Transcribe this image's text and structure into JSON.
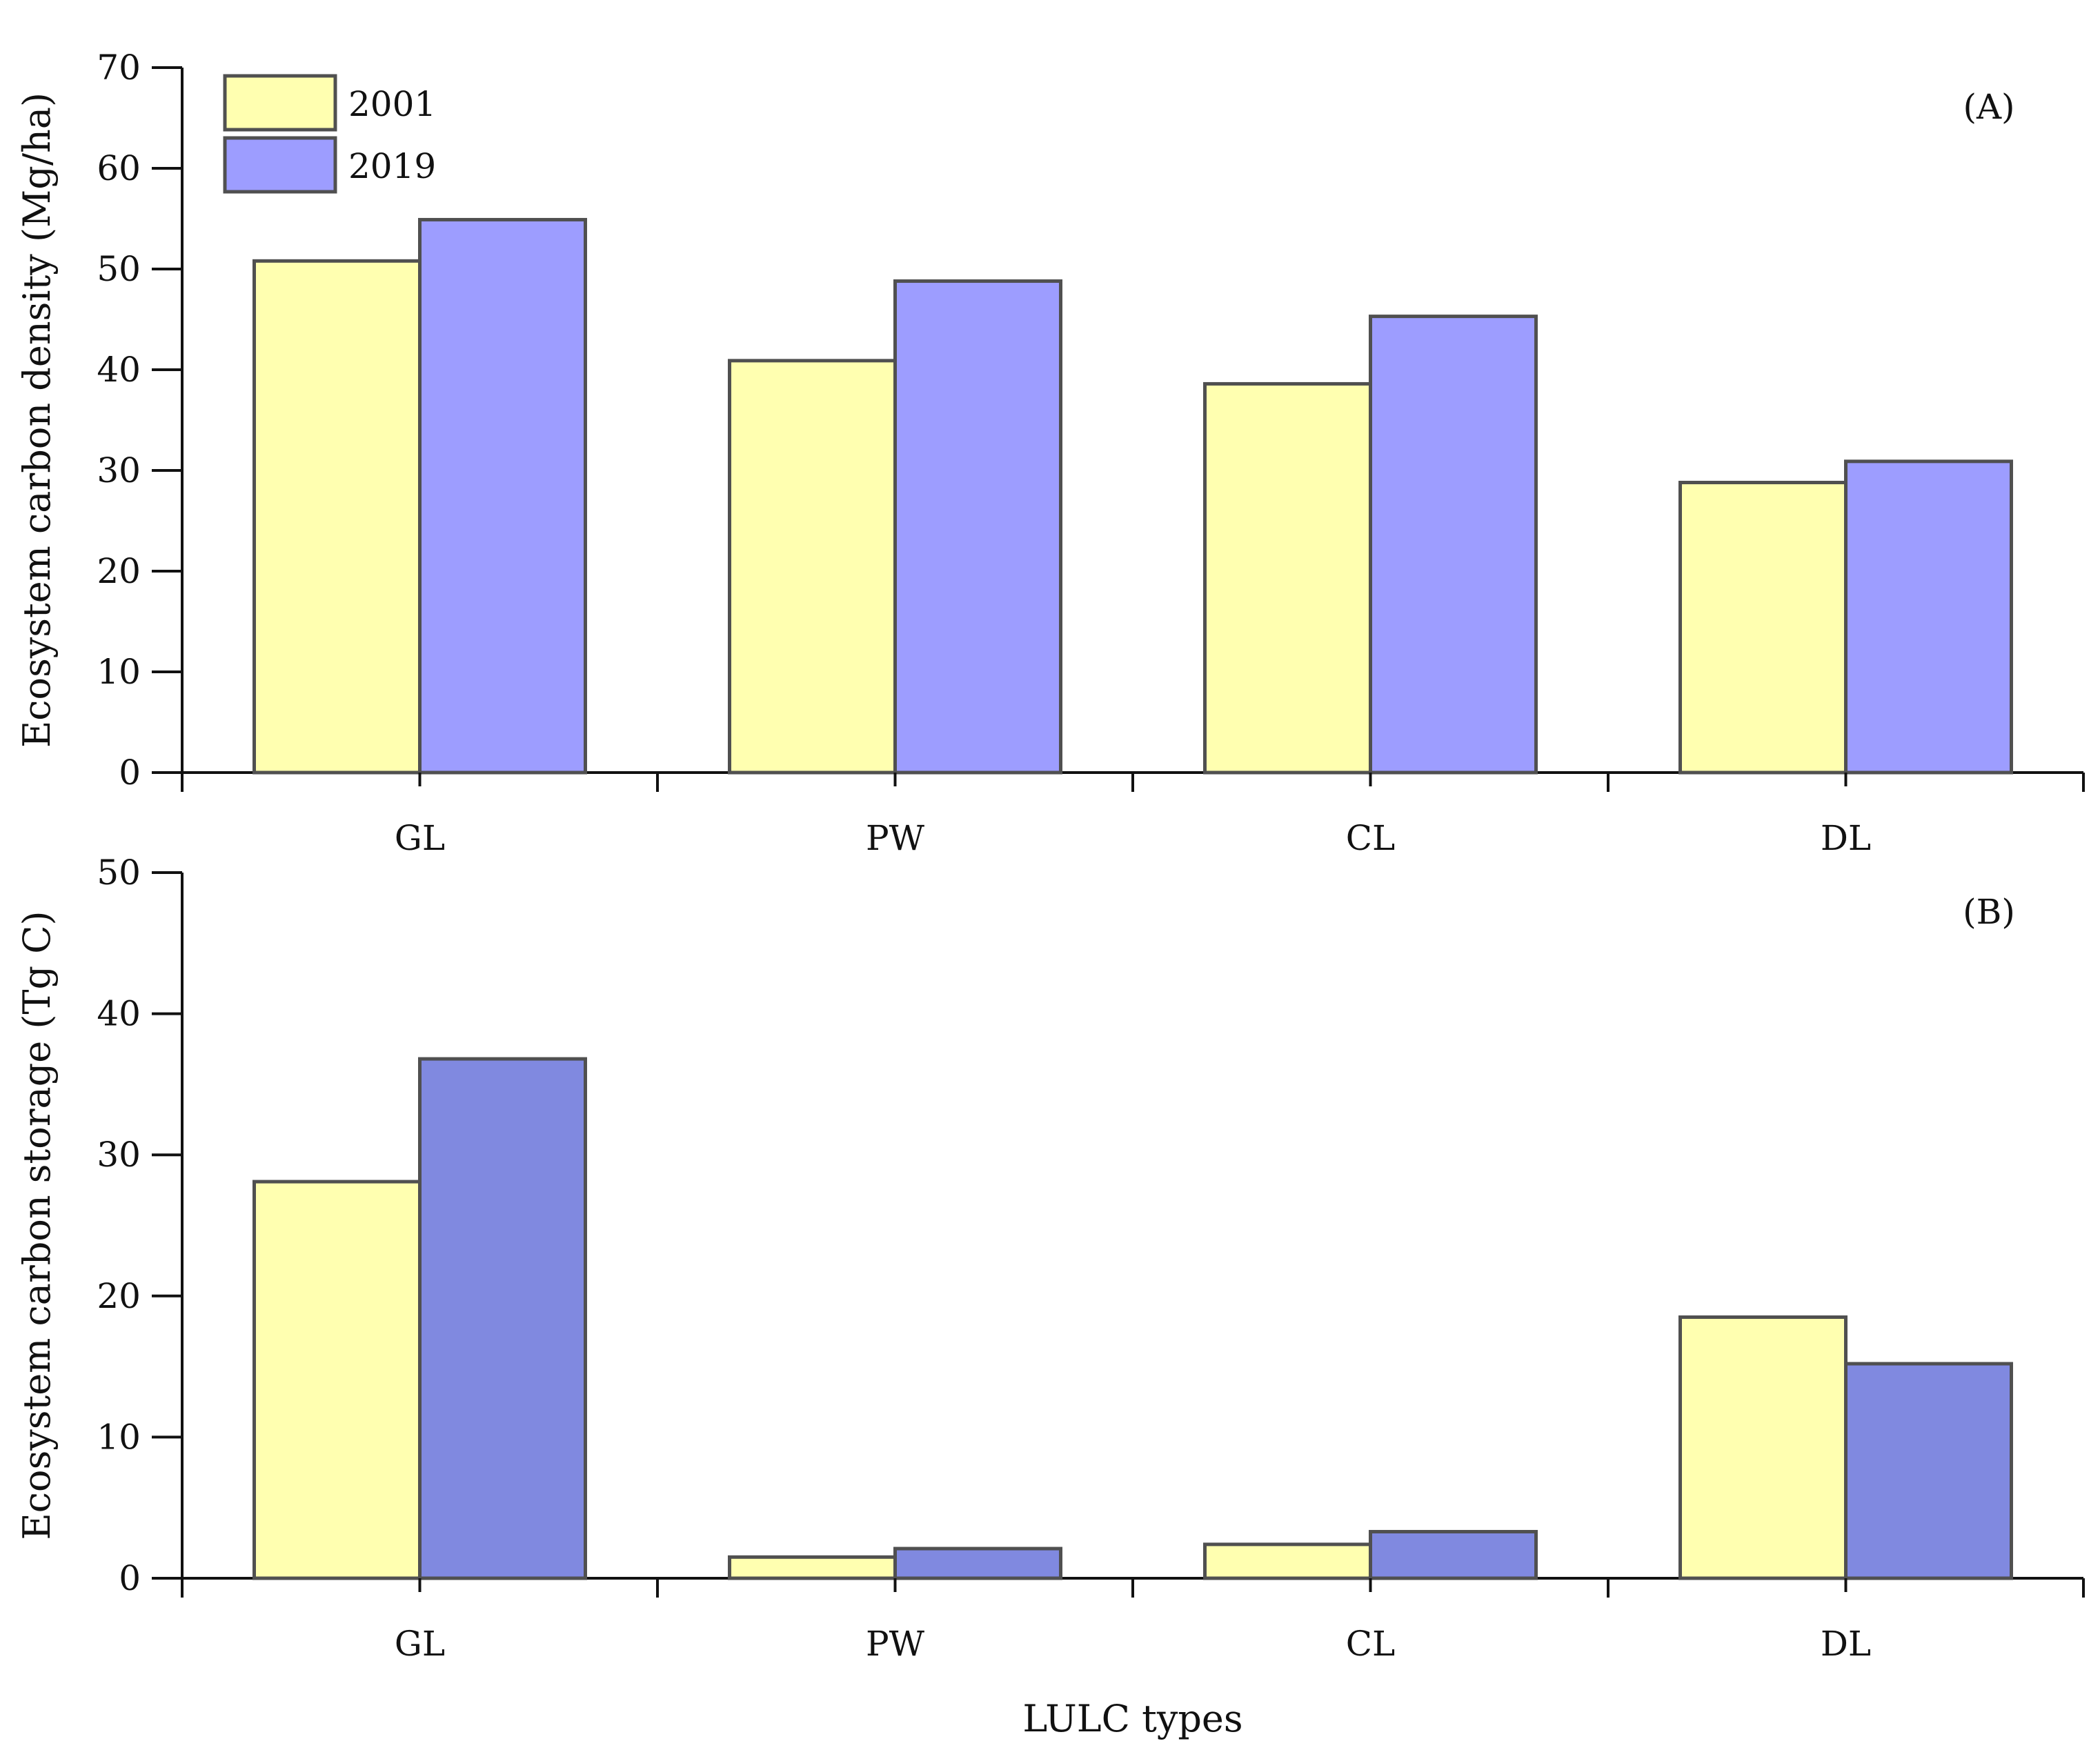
{
  "colors": {
    "series_2001": "#ffffb0",
    "series_2019_A": "#9d9dff",
    "series_2019_B": "#8089e0",
    "bar_edge": "#505050",
    "axis": "#111111"
  },
  "legend": [
    "2001",
    "2019"
  ],
  "chart_data": [
    {
      "type": "bar",
      "panel_label": "(A)",
      "categories": [
        "GL",
        "PW",
        "CL",
        "DL"
      ],
      "series": [
        {
          "name": "2001",
          "values": [
            50.8,
            40.9,
            38.6,
            28.8
          ]
        },
        {
          "name": "2019",
          "values": [
            54.9,
            48.8,
            45.3,
            30.9
          ]
        }
      ],
      "ylabel": "Ecosystem carbon density (Mg/ha)",
      "xlabel": "",
      "ylim": [
        0,
        70
      ],
      "yticks": [
        0,
        10,
        20,
        30,
        40,
        50,
        60,
        70
      ],
      "legend_position": "top-left",
      "grid": false
    },
    {
      "type": "bar",
      "panel_label": "(B)",
      "categories": [
        "GL",
        "PW",
        "CL",
        "DL"
      ],
      "series": [
        {
          "name": "2001",
          "values": [
            28.1,
            1.5,
            2.4,
            18.5
          ]
        },
        {
          "name": "2019",
          "values": [
            36.8,
            2.1,
            3.3,
            15.2
          ]
        }
      ],
      "ylabel": "Ecosystem carbon storage (Tg C)",
      "xlabel": "LULC types",
      "ylim": [
        0,
        50
      ],
      "yticks": [
        0,
        10,
        20,
        30,
        40,
        50
      ],
      "grid": false
    }
  ]
}
